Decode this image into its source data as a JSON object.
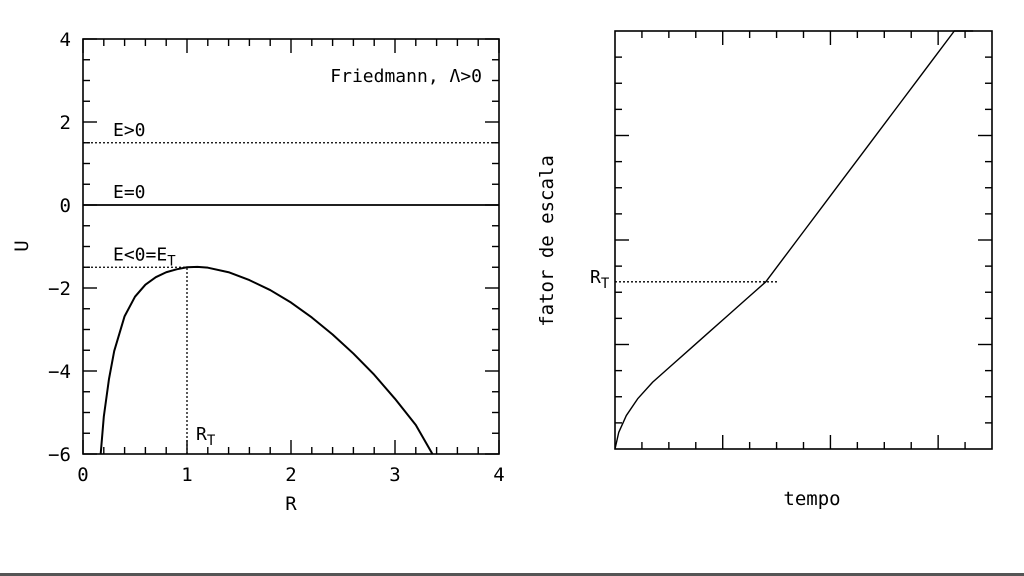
{
  "chart_data": [
    {
      "type": "line",
      "title": "Friedmann, Λ>0",
      "xlabel": "R",
      "ylabel": "U",
      "xlim": [
        0,
        4
      ],
      "ylim": [
        -6,
        4
      ],
      "xticks": [
        "0",
        "1",
        "2",
        "3",
        "4"
      ],
      "yticks": [
        "4",
        "2",
        "0",
        "−2",
        "−4",
        "−6"
      ],
      "grid": false,
      "series": [
        {
          "kind": "curve",
          "style": "solid",
          "x": [
            0.17,
            0.2,
            0.25,
            0.3,
            0.4,
            0.5,
            0.6,
            0.7,
            0.8,
            0.9,
            1.0,
            1.1,
            1.2,
            1.4,
            1.6,
            1.8,
            2.0,
            2.2,
            2.4,
            2.6,
            2.8,
            3.0,
            3.2,
            3.36
          ],
          "y": [
            -6.0,
            -5.1,
            -4.19,
            -3.52,
            -2.68,
            -2.21,
            -1.92,
            -1.74,
            -1.62,
            -1.55,
            -1.5,
            -1.49,
            -1.51,
            -1.62,
            -1.81,
            -2.05,
            -2.35,
            -2.71,
            -3.12,
            -3.58,
            -4.09,
            -4.67,
            -5.3,
            -6.0
          ]
        }
      ],
      "hlines": [
        {
          "label": "E>0",
          "y": 1.5,
          "style": "dotted"
        },
        {
          "label": "E=0",
          "y": 0,
          "style": "solid"
        },
        {
          "label": "E<0=E",
          "label_sub": "T",
          "y": -1.5,
          "style": "dotted",
          "x_end": 1.0
        }
      ],
      "vline": {
        "label": "R",
        "label_sub": "T",
        "x": 1.0,
        "y_from": -6,
        "y_to": -1.5,
        "style": "dotted"
      }
    },
    {
      "type": "line",
      "xlabel": "tempo",
      "ylabel": "fator de escala",
      "xticks": [],
      "yticks": [],
      "grid": false,
      "series": [
        {
          "kind": "curve",
          "style": "solid",
          "x": [
            0.0,
            0.01,
            0.03,
            0.06,
            0.1,
            0.15,
            0.2,
            0.25,
            0.3,
            0.35,
            0.4,
            0.45,
            0.5,
            0.55,
            0.6,
            0.65,
            0.7,
            0.75,
            0.8,
            0.85,
            0.9,
            0.95
          ],
          "y": [
            0.0,
            0.04,
            0.08,
            0.12,
            0.16,
            0.2,
            0.24,
            0.28,
            0.32,
            0.36,
            0.4,
            0.46,
            0.52,
            0.58,
            0.64,
            0.7,
            0.76,
            0.82,
            0.88,
            0.94,
            1.0,
            1.06
          ]
        }
      ],
      "hline": {
        "label": "R",
        "label_sub": "T",
        "y": 0.4,
        "style": "dotted"
      }
    }
  ]
}
